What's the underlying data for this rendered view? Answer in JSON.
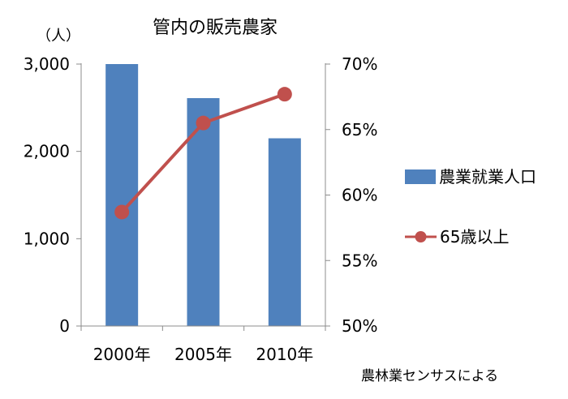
{
  "chart_data": {
    "type": "bar+line",
    "title": "管内の販売農家",
    "y_left_unit": "（人）",
    "categories": [
      "2000年",
      "2005年",
      "2010年"
    ],
    "y_left": {
      "ticks": [
        "0",
        "1,000",
        "2,000",
        "3,000"
      ],
      "tick_values": [
        0,
        1000,
        2000,
        3000
      ],
      "lim": [
        0,
        3000
      ]
    },
    "y_right": {
      "ticks": [
        "50%",
        "55%",
        "60%",
        "65%",
        "70%"
      ],
      "tick_values": [
        50,
        55,
        60,
        65,
        70
      ],
      "lim": [
        50,
        70
      ]
    },
    "series": [
      {
        "name": "農業就業人口",
        "type": "bar",
        "axis": "left",
        "color": "#4f81bd",
        "values": [
          3000,
          2610,
          2150
        ]
      },
      {
        "name": "65歳以上",
        "type": "line",
        "axis": "right",
        "color": "#c0504d",
        "values": [
          58.7,
          65.5,
          67.7
        ]
      }
    ],
    "legend_position": "right",
    "grid": false,
    "source_note": "農林業センサスによる"
  }
}
